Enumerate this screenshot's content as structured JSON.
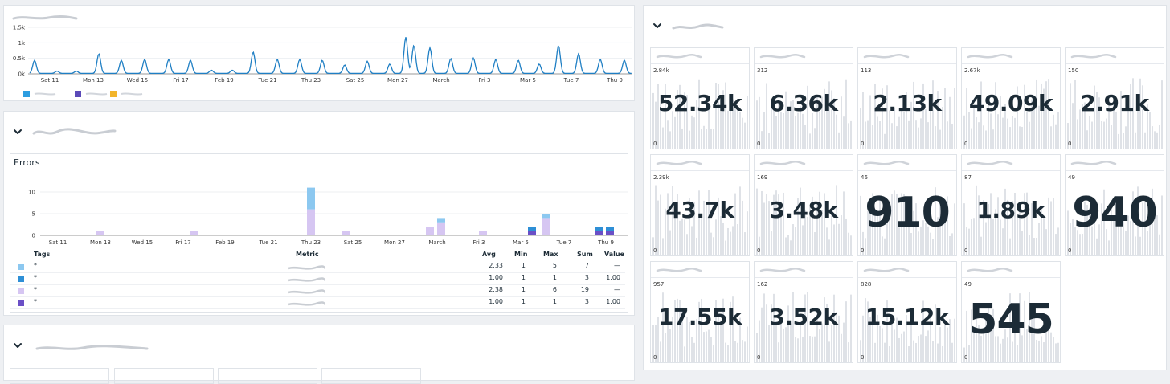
{
  "timeseries": {
    "yticks": [
      "1.5k",
      "1k",
      "0.5k",
      "0k"
    ],
    "xticks": [
      "Sat 11",
      "Mon 13",
      "Wed 15",
      "Fri 17",
      "Feb 19",
      "Tue 21",
      "Thu 23",
      "Sat 25",
      "Mon 27",
      "March",
      "Fri 3",
      "Mar 5",
      "Tue 7",
      "Thu 9"
    ],
    "legend_colors": [
      "#2d9de0",
      "#5b4ab8",
      "#f2b52b"
    ],
    "line_color": "#1f7fc4"
  },
  "errors": {
    "title": "Errors",
    "yticks": [
      "10",
      "5",
      "0"
    ],
    "xticks": [
      "Sat 11",
      "Mon 13",
      "Wed 15",
      "Fri 17",
      "Feb 19",
      "Tue 21",
      "Thu 23",
      "Sat 25",
      "Mon 27",
      "March",
      "Fri 3",
      "Mar 5",
      "Tue 7",
      "Thu 9"
    ],
    "table": {
      "headers": {
        "tags": "Tags",
        "metric": "Metric",
        "avg": "Avg",
        "min": "Min",
        "max": "Max",
        "sum": "Sum",
        "value": "Value"
      },
      "rows": [
        {
          "color": "#8cc8f0",
          "tag": "*",
          "avg": "2.33",
          "min": "1",
          "max": "5",
          "sum": "7",
          "value": "—"
        },
        {
          "color": "#2e8fd6",
          "tag": "*",
          "avg": "1.00",
          "min": "1",
          "max": "1",
          "sum": "3",
          "value": "1.00"
        },
        {
          "color": "#d6c6f2",
          "tag": "*",
          "avg": "2.38",
          "min": "1",
          "max": "6",
          "sum": "19",
          "value": "—"
        },
        {
          "color": "#6a4fc6",
          "tag": "*",
          "avg": "1.00",
          "min": "1",
          "max": "1",
          "sum": "3",
          "value": "1.00"
        }
      ]
    }
  },
  "tiles": [
    {
      "ymax": "2.84k",
      "ymin": "0",
      "value": "52.34k",
      "big": false
    },
    {
      "ymax": "312",
      "ymin": "0",
      "value": "6.36k",
      "big": false
    },
    {
      "ymax": "113",
      "ymin": "0",
      "value": "2.13k",
      "big": false
    },
    {
      "ymax": "2.67k",
      "ymin": "0",
      "value": "49.09k",
      "big": false
    },
    {
      "ymax": "150",
      "ymin": "0",
      "value": "2.91k",
      "big": false
    },
    {
      "ymax": "2.39k",
      "ymin": "0",
      "value": "43.7k",
      "big": false
    },
    {
      "ymax": "169",
      "ymin": "0",
      "value": "3.48k",
      "big": false
    },
    {
      "ymax": "46",
      "ymin": "0",
      "value": "910",
      "big": true
    },
    {
      "ymax": "87",
      "ymin": "0",
      "value": "1.89k",
      "big": false
    },
    {
      "ymax": "49",
      "ymin": "0",
      "value": "940",
      "big": true
    },
    {
      "ymax": "957",
      "ymin": "0",
      "value": "17.55k",
      "big": false
    },
    {
      "ymax": "162",
      "ymin": "0",
      "value": "3.52k",
      "big": false
    },
    {
      "ymax": "828",
      "ymin": "0",
      "value": "15.12k",
      "big": false
    },
    {
      "ymax": "49",
      "ymin": "0",
      "value": "545",
      "big": true
    }
  ]
}
